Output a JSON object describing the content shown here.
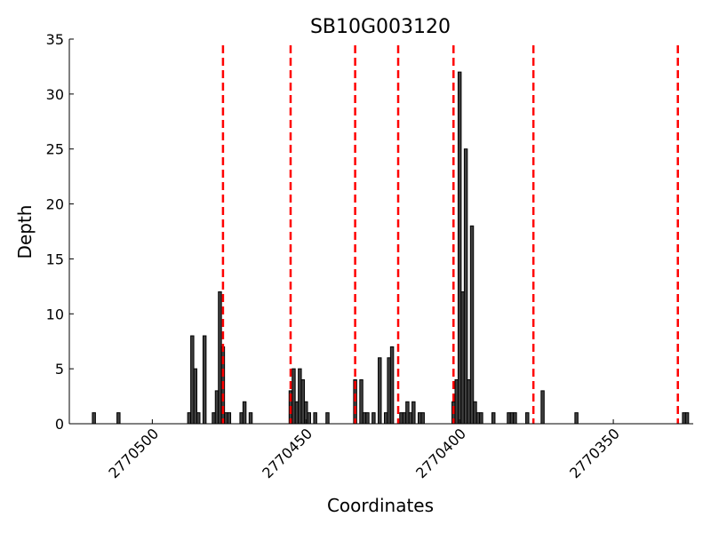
{
  "chart_data": {
    "type": "bar",
    "title": "SB10G003120",
    "xlabel": "Coordinates",
    "ylabel": "Depth",
    "xlim": [
      2770527,
      2770324
    ],
    "ylim": [
      0,
      35
    ],
    "x_reversed": true,
    "yticks": [
      0,
      5,
      10,
      15,
      20,
      25,
      30,
      35
    ],
    "xticks": [
      2770500,
      2770450,
      2770400,
      2770350
    ],
    "bar_color": "#3f3f3f",
    "line_color": "#ff0000",
    "grid": false,
    "series": [
      {
        "x": [
          2770519,
          2770511,
          2770488,
          2770487,
          2770486,
          2770485,
          2770483,
          2770480,
          2770479,
          2770478,
          2770477,
          2770476,
          2770475,
          2770471,
          2770470,
          2770468,
          2770455,
          2770454,
          2770453,
          2770452,
          2770451,
          2770450,
          2770449,
          2770447,
          2770443,
          2770434,
          2770432,
          2770431,
          2770430,
          2770428,
          2770426,
          2770424,
          2770423,
          2770422,
          2770419,
          2770418,
          2770417,
          2770416,
          2770415,
          2770413,
          2770412,
          2770402,
          2770401,
          2770400,
          2770399,
          2770398,
          2770397,
          2770396,
          2770395,
          2770394,
          2770393,
          2770389,
          2770384,
          2770383,
          2770382,
          2770378,
          2770373,
          2770362,
          2770327,
          2770326
        ],
        "values": [
          1,
          1,
          1,
          8,
          5,
          1,
          8,
          1,
          3,
          12,
          7,
          1,
          1,
          1,
          2,
          1,
          3,
          5,
          2,
          5,
          4,
          2,
          1,
          1,
          1,
          4,
          4,
          1,
          1,
          1,
          6,
          1,
          6,
          7,
          1,
          1,
          2,
          1,
          2,
          1,
          1,
          2,
          4,
          32,
          12,
          25,
          4,
          18,
          2,
          1,
          1,
          1,
          1,
          1,
          1,
          1,
          3,
          1,
          1,
          1
        ]
      }
    ],
    "vlines": [
      2770477,
      2770455,
      2770434,
      2770420,
      2770402,
      2770376,
      2770329
    ]
  }
}
